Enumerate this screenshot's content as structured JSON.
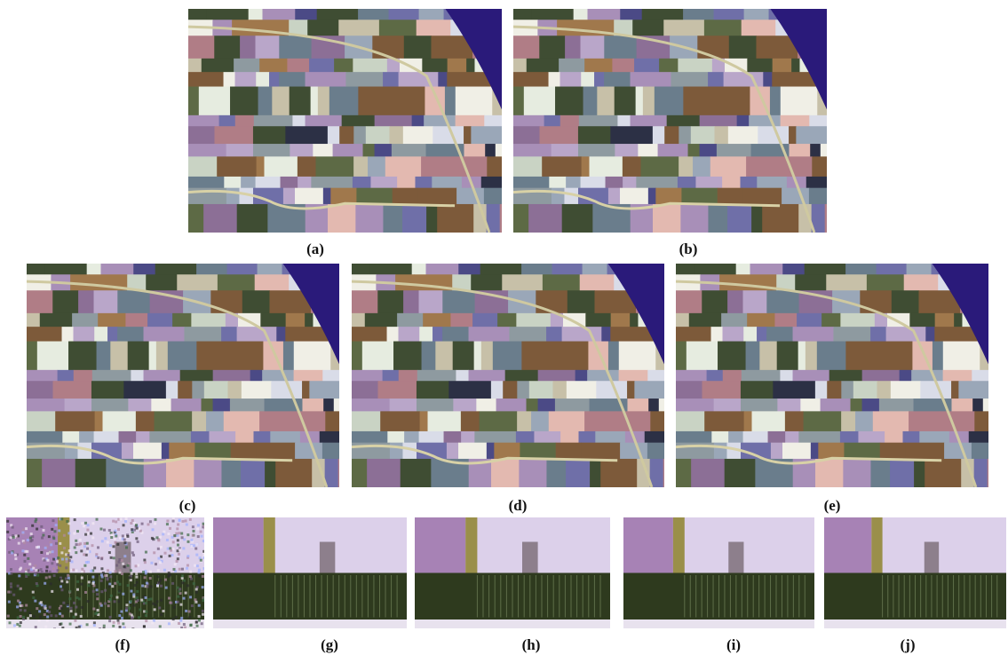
{
  "figure": {
    "panels": [
      {
        "label": "(a)"
      },
      {
        "label": "(b)"
      },
      {
        "label": "(c)"
      },
      {
        "label": "(d)"
      },
      {
        "label": "(e)"
      },
      {
        "label": "(f)"
      },
      {
        "label": "(g)"
      },
      {
        "label": "(h)"
      },
      {
        "label": "(i)"
      },
      {
        "label": "(j)"
      }
    ]
  }
}
